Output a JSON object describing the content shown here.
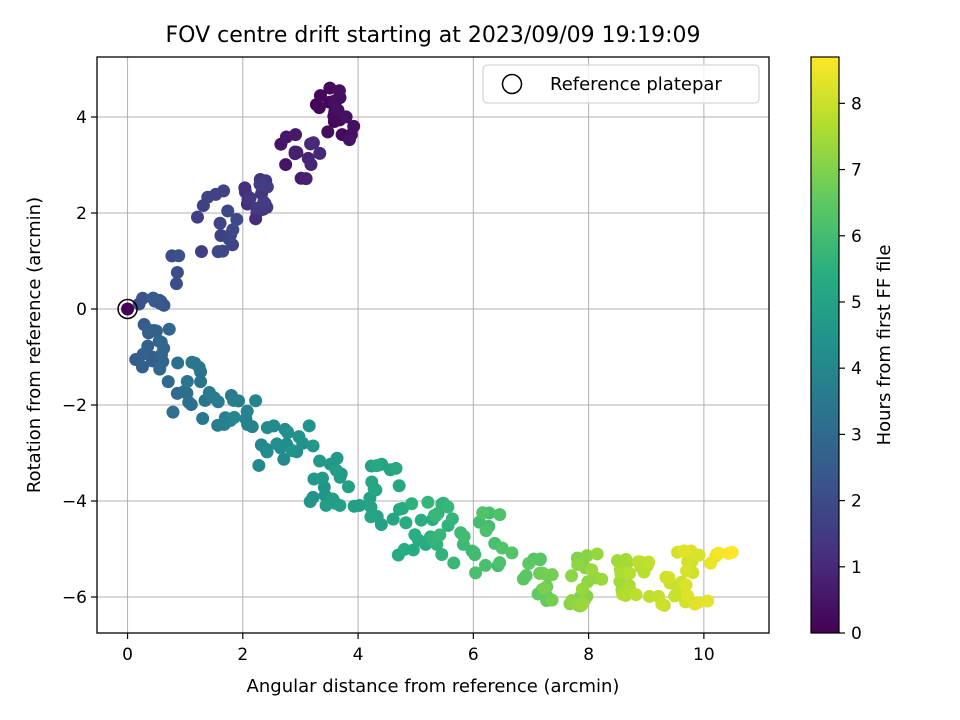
{
  "chart_data": {
    "type": "scatter",
    "title": "FOV centre drift starting at 2023/09/09 19:19:09",
    "xlabel": "Angular distance from reference (arcmin)",
    "ylabel": "Rotation from reference (arcmin)",
    "xlim": [
      -0.53,
      11.13
    ],
    "ylim": [
      -6.75,
      5.25
    ],
    "xticks": [
      0,
      2,
      4,
      6,
      8,
      10
    ],
    "yticks": [
      -6,
      -4,
      -2,
      0,
      2,
      4
    ],
    "grid": true,
    "legend": {
      "position": "top-right",
      "entries": [
        "Reference platepar"
      ]
    },
    "reference_point": [
      0,
      0
    ],
    "colorbar": {
      "label": "Hours from first FF file",
      "range": [
        0,
        8.7
      ],
      "ticks": [
        0,
        1,
        2,
        3,
        4,
        5,
        6,
        7,
        8
      ],
      "colormap": "viridis"
    },
    "points_ranges": [
      {
        "h": [
          0.05,
          0.45
        ],
        "x": [
          3.1,
          4.15
        ],
        "y": [
          3.5,
          4.7
        ],
        "n": 20
      },
      {
        "h": [
          0.45,
          1.05
        ],
        "x": [
          2.6,
          3.4
        ],
        "y": [
          2.7,
          3.8
        ],
        "n": 14
      },
      {
        "h": [
          1.05,
          1.6
        ],
        "x": [
          1.8,
          2.7
        ],
        "y": [
          1.8,
          2.7
        ],
        "n": 18
      },
      {
        "h": [
          1.6,
          1.95
        ],
        "x": [
          1.2,
          2.1
        ],
        "y": [
          1.0,
          2.5
        ],
        "n": 16
      },
      {
        "h": [
          1.95,
          2.15
        ],
        "x": [
          0.7,
          1.0
        ],
        "y": [
          0.5,
          1.15
        ],
        "n": 4
      },
      {
        "h": [
          2.15,
          2.45
        ],
        "x": [
          0.15,
          0.8
        ],
        "y": [
          0.0,
          0.25
        ],
        "n": 8
      },
      {
        "h": [
          2.45,
          2.95
        ],
        "x": [
          0.05,
          0.8
        ],
        "y": [
          -1.3,
          -0.2
        ],
        "n": 18
      },
      {
        "h": [
          2.95,
          3.5
        ],
        "x": [
          0.6,
          1.6
        ],
        "y": [
          -2.35,
          -1.1
        ],
        "n": 16
      },
      {
        "h": [
          3.5,
          4.0
        ],
        "x": [
          1.3,
          2.4
        ],
        "y": [
          -2.5,
          -1.6
        ],
        "n": 16
      },
      {
        "h": [
          4.0,
          4.45
        ],
        "x": [
          2.2,
          3.2
        ],
        "y": [
          -3.3,
          -2.4
        ],
        "n": 18
      },
      {
        "h": [
          4.45,
          4.85
        ],
        "x": [
          3.0,
          3.9
        ],
        "y": [
          -4.1,
          -2.8
        ],
        "n": 18
      },
      {
        "h": [
          4.85,
          5.25
        ],
        "x": [
          3.8,
          4.9
        ],
        "y": [
          -4.6,
          -3.1
        ],
        "n": 20
      },
      {
        "h": [
          5.25,
          5.8
        ],
        "x": [
          4.6,
          5.8
        ],
        "y": [
          -5.4,
          -4.0
        ],
        "n": 24
      },
      {
        "h": [
          5.8,
          6.3
        ],
        "x": [
          5.6,
          6.8
        ],
        "y": [
          -5.7,
          -4.2
        ],
        "n": 20
      },
      {
        "h": [
          6.3,
          6.9
        ],
        "x": [
          6.8,
          7.6
        ],
        "y": [
          -6.1,
          -5.1
        ],
        "n": 18
      },
      {
        "h": [
          6.9,
          7.4
        ],
        "x": [
          7.5,
          8.3
        ],
        "y": [
          -6.2,
          -5.0
        ],
        "n": 22
      },
      {
        "h": [
          7.4,
          7.9
        ],
        "x": [
          8.3,
          9.2
        ],
        "y": [
          -6.1,
          -5.2
        ],
        "n": 20
      },
      {
        "h": [
          7.9,
          8.35
        ],
        "x": [
          9.1,
          10.1
        ],
        "y": [
          -6.2,
          -5.0
        ],
        "n": 24
      },
      {
        "h": [
          8.35,
          8.7
        ],
        "x": [
          10.0,
          10.6
        ],
        "y": [
          -5.4,
          -4.9
        ],
        "n": 6
      }
    ]
  }
}
